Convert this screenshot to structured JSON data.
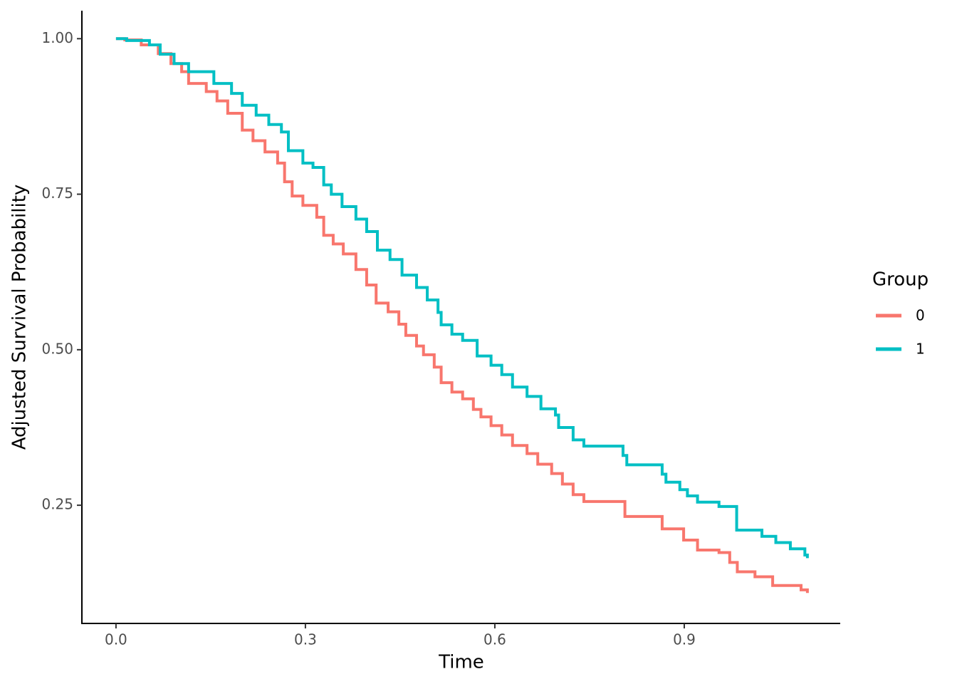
{
  "chart_data": {
    "type": "line",
    "step": true,
    "x_label": "Time",
    "y_label": "Adjusted Survival Probability",
    "legend_title": "Group",
    "legend_position": "right",
    "xlim": [
      -0.054,
      1.147
    ],
    "ylim": [
      0.06,
      1.045
    ],
    "xticks": [
      {
        "value": 0,
        "label": "0.0"
      },
      0.3,
      0.6,
      0.9
    ],
    "yticks": [
      0.25,
      {
        "value": 0.5,
        "label": "0.50"
      },
      0.75,
      {
        "value": 1,
        "label": "1.00"
      }
    ],
    "series": [
      {
        "name": "0",
        "color": "#F8766D",
        "x": [
          0,
          0.014,
          0.04,
          0.067,
          0.087,
          0.104,
          0.115,
          0.143,
          0.16,
          0.177,
          0.2,
          0.217,
          0.236,
          0.256,
          0.267,
          0.279,
          0.296,
          0.318,
          0.329,
          0.344,
          0.36,
          0.38,
          0.397,
          0.412,
          0.431,
          0.448,
          0.459,
          0.476,
          0.487,
          0.504,
          0.515,
          0.532,
          0.549,
          0.566,
          0.578,
          0.594,
          0.611,
          0.628,
          0.651,
          0.668,
          0.69,
          0.707,
          0.724,
          0.741,
          0.806,
          0.865,
          0.899,
          0.921,
          0.955,
          0.972,
          0.984,
          1.012,
          1.04,
          1.085,
          1.095
        ],
        "values": [
          1,
          0.998,
          0.99,
          0.976,
          0.96,
          0.947,
          0.928,
          0.915,
          0.9,
          0.88,
          0.853,
          0.836,
          0.818,
          0.8,
          0.77,
          0.747,
          0.732,
          0.713,
          0.684,
          0.67,
          0.654,
          0.629,
          0.604,
          0.575,
          0.561,
          0.541,
          0.523,
          0.506,
          0.492,
          0.472,
          0.447,
          0.432,
          0.421,
          0.404,
          0.392,
          0.378,
          0.363,
          0.346,
          0.333,
          0.316,
          0.301,
          0.284,
          0.267,
          0.256,
          0.232,
          0.212,
          0.194,
          0.178,
          0.174,
          0.158,
          0.143,
          0.135,
          0.121,
          0.114,
          0.109
        ]
      },
      {
        "name": "1",
        "color": "#00BFC4",
        "x": [
          0,
          0.017,
          0.053,
          0.07,
          0.092,
          0.115,
          0.155,
          0.183,
          0.2,
          0.222,
          0.242,
          0.262,
          0.273,
          0.296,
          0.312,
          0.329,
          0.341,
          0.358,
          0.38,
          0.397,
          0.414,
          0.434,
          0.453,
          0.476,
          0.493,
          0.51,
          0.515,
          0.532,
          0.549,
          0.572,
          0.594,
          0.611,
          0.628,
          0.651,
          0.673,
          0.696,
          0.701,
          0.724,
          0.741,
          0.803,
          0.809,
          0.865,
          0.871,
          0.893,
          0.905,
          0.921,
          0.955,
          0.983,
          1.023,
          1.045,
          1.068,
          1.091,
          1.095
        ],
        "values": [
          1,
          0.997,
          0.99,
          0.975,
          0.96,
          0.947,
          0.928,
          0.912,
          0.893,
          0.877,
          0.862,
          0.85,
          0.82,
          0.8,
          0.793,
          0.765,
          0.75,
          0.73,
          0.71,
          0.69,
          0.66,
          0.645,
          0.62,
          0.6,
          0.58,
          0.56,
          0.54,
          0.525,
          0.515,
          0.49,
          0.475,
          0.46,
          0.44,
          0.425,
          0.405,
          0.395,
          0.375,
          0.355,
          0.345,
          0.33,
          0.315,
          0.3,
          0.287,
          0.275,
          0.265,
          0.255,
          0.248,
          0.21,
          0.2,
          0.19,
          0.18,
          0.17,
          0.165
        ]
      }
    ]
  }
}
